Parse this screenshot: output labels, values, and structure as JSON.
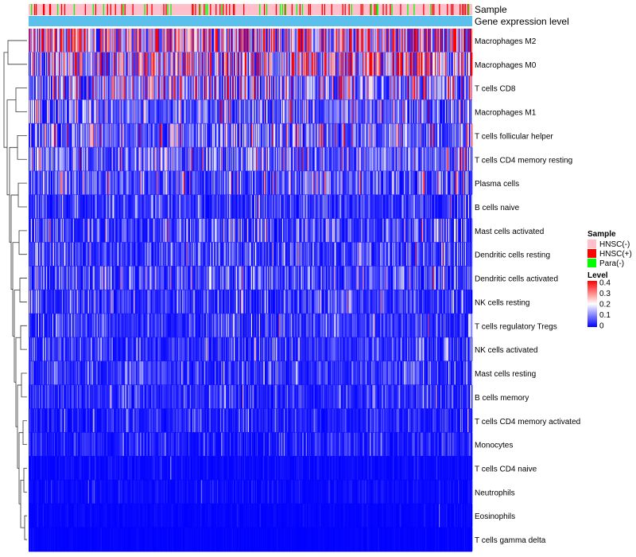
{
  "chart_data": {
    "type": "heatmap",
    "title": "",
    "annotation_labels": [
      "Sample",
      "Gene expression level"
    ],
    "rows": [
      "Macrophages M2",
      "Macrophages M0",
      "T cells CD8",
      "Macrophages M1",
      "T cells follicular helper",
      "T cells CD4 memory resting",
      "Plasma cells",
      "B cells naive",
      "Mast cells activated",
      "Dendritic cells resting",
      "Dendritic cells activated",
      "NK cells resting",
      "T cells regulatory  Tregs",
      "NK cells activated",
      "Mast cells resting",
      "B cells memory",
      "T cells CD4 memory activated",
      "Monocytes",
      "T cells CD4 naive",
      "Neutrophils",
      "Eosinophils",
      "T cells gamma delta"
    ],
    "row_mean_level": [
      0.26,
      0.2,
      0.15,
      0.09,
      0.11,
      0.1,
      0.08,
      0.05,
      0.07,
      0.06,
      0.06,
      0.05,
      0.05,
      0.05,
      0.05,
      0.04,
      0.03,
      0.03,
      0.01,
      0.01,
      0.005,
      0.003
    ],
    "column_count": 560,
    "sample_groups": [
      {
        "name": "HNSC(-)",
        "color": "#ffc0cb",
        "share": 0.82
      },
      {
        "name": "HNSC(+)",
        "color": "#ff0000",
        "share": 0.12
      },
      {
        "name": "Para(-)",
        "color": "#00ff00",
        "share": 0.06
      }
    ],
    "legend_sample": {
      "title": "Sample",
      "entries": [
        {
          "label": "HNSC(-)",
          "color": "#ffc0cb"
        },
        {
          "label": "HNSC(+)",
          "color": "#ff0000"
        },
        {
          "label": "Para(-)",
          "color": "#00ff00"
        }
      ]
    },
    "legend_level": {
      "title": "Level",
      "ticks": [
        "0.4",
        "0.3",
        "0.2",
        "0.1",
        "0"
      ],
      "range": [
        0,
        0.4
      ],
      "colors": [
        "#0000ff",
        "#ffffff",
        "#ff0000"
      ]
    },
    "gene_expression_color": "#5bc0eb",
    "dendrogram": "left"
  }
}
